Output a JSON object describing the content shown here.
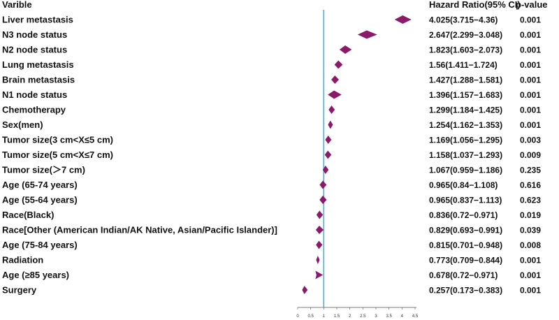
{
  "headers": {
    "variable": "Varible",
    "hazard_ratio": "Hazard Ratio(95% CI)",
    "p_value": "p-value"
  },
  "colors": {
    "marker": "#8b1a6b",
    "reference_line": "#40b4c4",
    "axis": "#555555",
    "text": "#111111"
  },
  "chart_data": {
    "type": "forest",
    "title": "",
    "xlabel": "",
    "ylabel": "",
    "reference_value": 1,
    "xlim": [
      0,
      4.5
    ],
    "x_ticks": [
      "0",
      "0.5",
      "1",
      "1.5",
      "2",
      "2.5",
      "3",
      "3.5",
      "4",
      "4.5"
    ],
    "rows": [
      {
        "label": "Liver metastasis",
        "hr": 4.025,
        "lo": 3.715,
        "hi": 4.36,
        "hr_text": "4.025(3.715−4.36)",
        "p": "0.001"
      },
      {
        "label": "N3 node status",
        "hr": 2.647,
        "lo": 2.299,
        "hi": 3.048,
        "hr_text": "2.647(2.299−3.048)",
        "p": "0.001"
      },
      {
        "label": "N2 node status",
        "hr": 1.823,
        "lo": 1.603,
        "hi": 2.073,
        "hr_text": "1.823(1.603−2.073)",
        "p": "0.001"
      },
      {
        "label": "Lung metastasis",
        "hr": 1.56,
        "lo": 1.411,
        "hi": 1.724,
        "hr_text": "1.56(1.411−1.724)",
        "p": "0.001"
      },
      {
        "label": "Brain metastasis",
        "hr": 1.427,
        "lo": 1.288,
        "hi": 1.581,
        "hr_text": "1.427(1.288−1.581)",
        "p": "0.001"
      },
      {
        "label": "N1 node status",
        "hr": 1.396,
        "lo": 1.157,
        "hi": 1.683,
        "hr_text": "1.396(1.157−1.683)",
        "p": "0.001"
      },
      {
        "label": "Chemotherapy",
        "hr": 1.299,
        "lo": 1.184,
        "hi": 1.425,
        "hr_text": "1.299(1.184−1.425)",
        "p": "0.001"
      },
      {
        "label": "Sex(men)",
        "hr": 1.254,
        "lo": 1.162,
        "hi": 1.353,
        "hr_text": "1.254(1.162−1.353)",
        "p": "0.001"
      },
      {
        "label": "Tumor size(3 cm<X≤5 cm)",
        "hr": 1.169,
        "lo": 1.056,
        "hi": 1.295,
        "hr_text": "1.169(1.056−1.295)",
        "p": "0.003"
      },
      {
        "label": "Tumor size(5 cm<X≤7 cm)",
        "hr": 1.158,
        "lo": 1.037,
        "hi": 1.293,
        "hr_text": "1.158(1.037−1.293)",
        "p": "0.009"
      },
      {
        "label": "Tumor size(＞7 cm)",
        "hr": 1.067,
        "lo": 0.959,
        "hi": 1.186,
        "hr_text": "1.067(0.959−1.186)",
        "p": "0.235"
      },
      {
        "label": "Age (65-74 years)",
        "hr": 0.965,
        "lo": 0.84,
        "hi": 1.108,
        "hr_text": "0.965(0.84−1.108)",
        "p": "0.616"
      },
      {
        "label": "Age (55-64 years)",
        "hr": 0.965,
        "lo": 0.837,
        "hi": 1.113,
        "hr_text": "0.965(0.837−1.113)",
        "p": "0.623"
      },
      {
        "label": "Race(Black)",
        "hr": 0.836,
        "lo": 0.72,
        "hi": 0.971,
        "hr_text": "0.836(0.72−0.971)",
        "p": "0.019"
      },
      {
        "label": "Race[Other (American Indian/AK Native, Asian/Pacific Islander)]",
        "hr": 0.829,
        "lo": 0.693,
        "hi": 0.991,
        "hr_text": "0.829(0.693−0.991)",
        "p": "0.039"
      },
      {
        "label": "Age (75-84 years)",
        "hr": 0.815,
        "lo": 0.701,
        "hi": 0.948,
        "hr_text": "0.815(0.701−0.948)",
        "p": "0.008"
      },
      {
        "label": "Radiation",
        "hr": 0.773,
        "lo": 0.709,
        "hi": 0.844,
        "hr_text": "0.773(0.709−0.844)",
        "p": "0.001"
      },
      {
        "label": "Age (≥85 years)",
        "hr": 0.678,
        "lo": 0.72,
        "hi": 0.971,
        "hr_text": "0.678(0.72−0.971)",
        "p": "0.001"
      },
      {
        "label": "Surgery",
        "hr": 0.257,
        "lo": 0.173,
        "hi": 0.383,
        "hr_text": "0.257(0.173−0.383)",
        "p": "0.001"
      }
    ]
  }
}
